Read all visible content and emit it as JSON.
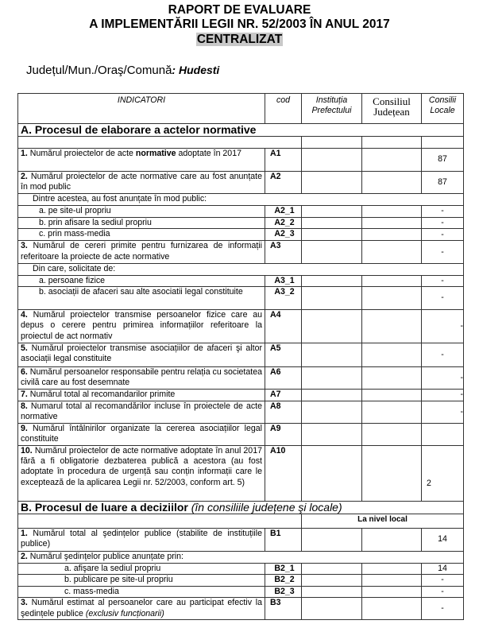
{
  "header": {
    "title_line1": "RAPORT DE EVALUARE",
    "title_line2": "A IMPLEMENTĂRII LEGII NR. 52/2003 ÎN ANUL 2017",
    "title_line3": "CENTRALIZAT",
    "location_label": "Județul/Mun./Oraş/Comună",
    "location_value": ": Hudesti"
  },
  "table": {
    "columns": [
      "INDICATORI",
      "cod",
      "Instituția Prefectului",
      "Consiliul Județean",
      "Consilii Locale"
    ],
    "rows": [
      {
        "type": "section",
        "title": "A. Procesul de elaborare a actelor normative"
      },
      {
        "type": "blank"
      },
      {
        "type": "data",
        "num": "1.",
        "text": " Numărul proiectelor de acte ",
        "bold": "normative",
        "after": " adoptate în 2017",
        "cod": "A1",
        "values": [
          "",
          "",
          "87"
        ]
      },
      {
        "type": "data",
        "num": "2.",
        "text": " Numărul proiectelor de acte normative care au fost anunțate în mod public",
        "cod": "A2",
        "values": [
          "",
          "",
          "87"
        ]
      },
      {
        "type": "sub",
        "text": "Dintre acestea, au fost anunțate în mod public:"
      },
      {
        "type": "data",
        "indent": 2,
        "text": "a.   pe site-ul propriu",
        "cod": "A2_1",
        "values": [
          "",
          "",
          "-"
        ]
      },
      {
        "type": "data",
        "indent": 2,
        "text": "b.   prin afisare la sediul propriu",
        "cod": "A2_2",
        "values": [
          "",
          "",
          "-"
        ]
      },
      {
        "type": "data",
        "indent": 2,
        "text": "c.   prin mass-media",
        "cod": "A2_3",
        "values": [
          "",
          "",
          "-"
        ]
      },
      {
        "type": "data",
        "num": "3.",
        "text": " Numărul de cereri primite pentru furnizarea de informații referitoare la proiecte de acte normative",
        "cod": "A3",
        "values": [
          "",
          "",
          "-"
        ]
      },
      {
        "type": "sub",
        "text": "Din care, solicitate de:"
      },
      {
        "type": "data",
        "indent": 2,
        "text": "a. persoane fizice",
        "cod": "A3_1",
        "values": [
          "",
          "",
          "-"
        ]
      },
      {
        "type": "data",
        "indent": 2,
        "text": "b. asociații de afaceri sau alte  asociatii legal constituite",
        "cod": "A3_2",
        "values": [
          "",
          "",
          "-"
        ]
      },
      {
        "type": "data",
        "num": "4.",
        "text": " Numărul proiectelor transmise persoanelor fizice care au depus o cerere pentru primirea informațiilor referitoare la proiectul de act normativ",
        "cod": "A4",
        "values": [
          "",
          "",
          "-"
        ]
      },
      {
        "type": "data",
        "num": "5.",
        "text": " Numărul proiectelor transmise asociațiilor de afaceri şi altor asociații legal constituite",
        "cod": "A5",
        "values": [
          "",
          "",
          "-"
        ]
      },
      {
        "type": "data",
        "num": "6.",
        "text": " Numărul persoanelor responsabile pentru relația cu societatea civilă care au fost desemnate",
        "cod": "A6",
        "values": [
          "",
          "",
          "-"
        ]
      },
      {
        "type": "data",
        "num": "7.",
        "text": " Numărul total al recomandarilor primite",
        "cod": "A7",
        "values": [
          "",
          "",
          "-"
        ]
      },
      {
        "type": "data",
        "num": "8.",
        "text": " Numarul total al recomandărilor incluse în proiectele de acte normative",
        "cod": "A8",
        "values": [
          "",
          "",
          "-"
        ]
      },
      {
        "type": "data",
        "num": "9.",
        "text": " Numărul întâlnirilor organizate la cererea asociațiilor legal constituite",
        "cod": "A9",
        "values": [
          "",
          "",
          ""
        ]
      },
      {
        "type": "data",
        "num": "10.",
        "text": " Numărul proiectelor de acte normative adoptate în anul 2017 fără a fi obligatorie dezbaterea publică a acestora (au fost adoptate în procedura de urgență sau conțin informații care le exceptează de la aplicarea Legii nr. 52/2003, conform art. 5)",
        "cod": "A10",
        "values": [
          "",
          "",
          "2"
        ]
      },
      {
        "type": "section",
        "title": "B. Procesul de luare a deciziilor",
        "italic": " (în consiliile județene şi locale)"
      },
      {
        "type": "level",
        "text": "La nivel local"
      },
      {
        "type": "data",
        "num": "1.",
        "text": " Numărul total al şedințelor publice (stabilite de instituțiile publice)",
        "cod": "B1",
        "values": [
          "",
          "",
          "14"
        ]
      },
      {
        "type": "sub0",
        "num": "2.",
        "text": " Numărul şedințelor publice anunțate prin:"
      },
      {
        "type": "data",
        "indent": 3,
        "text": "a. afişare la sediul propriu",
        "cod": "B2_1",
        "values": [
          "",
          "",
          "14"
        ]
      },
      {
        "type": "data",
        "indent": 3,
        "text": "b. publicare pe site-ul propriu",
        "cod": "B2_2",
        "values": [
          "",
          "",
          "-"
        ]
      },
      {
        "type": "data",
        "indent": 3,
        "text": "c. mass-media",
        "cod": "B2_3",
        "values": [
          "",
          "",
          "-"
        ]
      },
      {
        "type": "data",
        "num": "3.",
        "text": " Numărul estimat al persoanelor care au participat efectiv la şedințele publice  ",
        "italic": "(exclusiv funcționarii)",
        "cod": "B3",
        "values": [
          "",
          "",
          "-"
        ]
      }
    ]
  }
}
